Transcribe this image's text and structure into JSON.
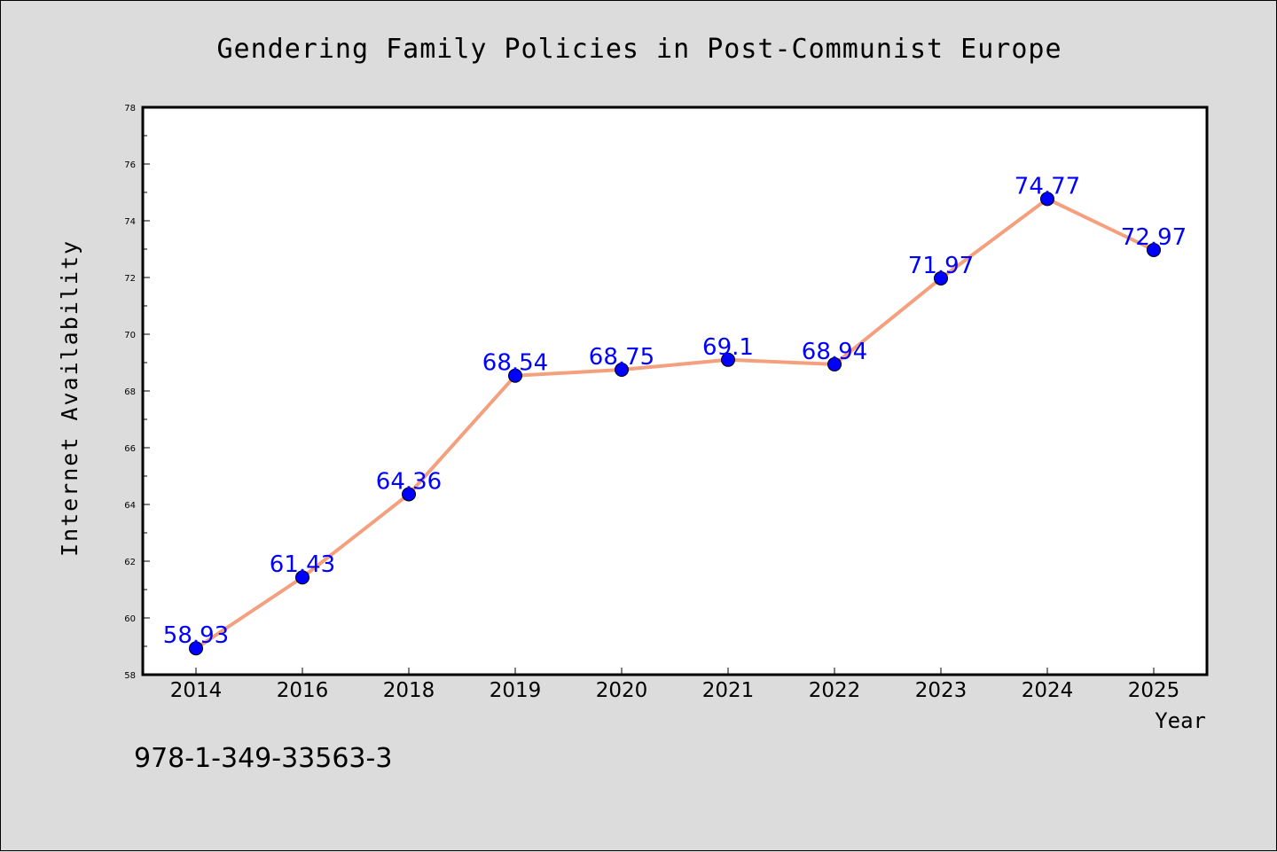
{
  "chart_data": {
    "type": "line",
    "title": "Gendering Family Policies in Post-Communist Europe",
    "xlabel": "Year",
    "ylabel": "Internet Availability",
    "categories": [
      "2014",
      "2016",
      "2018",
      "2019",
      "2020",
      "2021",
      "2022",
      "2023",
      "2024",
      "2025"
    ],
    "series": [
      {
        "values": [
          58.93,
          61.43,
          64.36,
          68.54,
          68.75,
          69.1,
          68.94,
          71.97,
          74.77,
          72.97
        ],
        "line_color": "#f4a07e",
        "marker_color": "#0000ff"
      }
    ],
    "data_labels": [
      "58.93",
      "61.43",
      "64.36",
      "68.54",
      "68.75",
      "69.1",
      "68.94",
      "71.97",
      "74.77",
      "72.97"
    ],
    "ylim": [
      58,
      78
    ],
    "yticks": [
      "58",
      "60",
      "62",
      "64",
      "66",
      "68",
      "70",
      "72",
      "74",
      "76",
      "78"
    ],
    "grid": false,
    "legend": "none"
  },
  "footer": {
    "isbn": "978-1-349-33563-3"
  },
  "colors": {
    "background": "#dcdcdc",
    "plot_area": "#ffffff",
    "line": "#f4a07e",
    "marker": "#0000ff",
    "data_label": "#0000ff"
  }
}
